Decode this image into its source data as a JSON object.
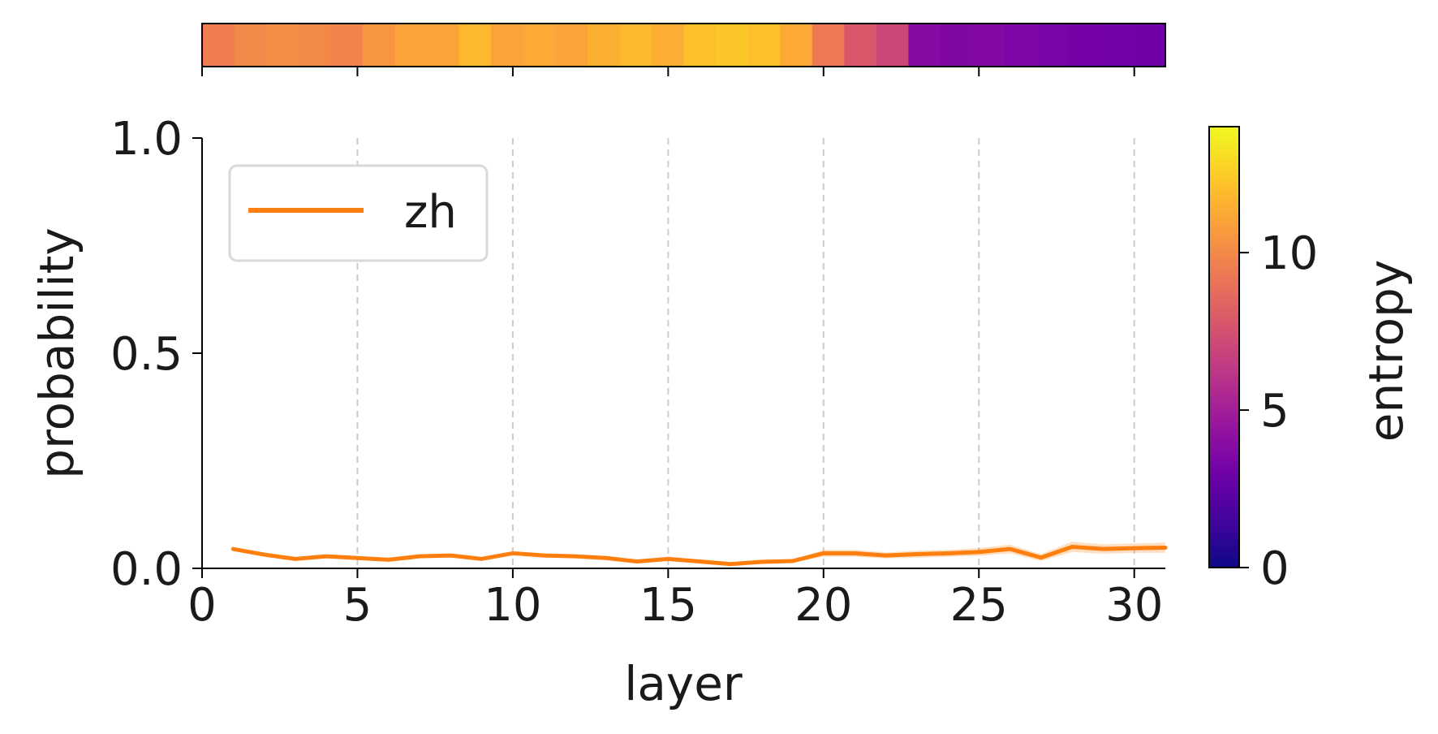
{
  "chart_data": {
    "type": "line",
    "xlabel": "layer",
    "ylabel": "probability",
    "xlim": [
      0,
      31
    ],
    "ylim": [
      0,
      1
    ],
    "x_ticks": [
      0,
      5,
      10,
      15,
      20,
      25,
      30
    ],
    "y_ticks": [
      0.0,
      0.5,
      1.0
    ],
    "x_tick_labels": [
      "0",
      "5",
      "10",
      "15",
      "20",
      "25",
      "30"
    ],
    "y_tick_labels": [
      "0.0",
      "0.5",
      "1.0"
    ],
    "grid": "vertical dashed at x ticks",
    "legend": {
      "location": "top-left",
      "entries": [
        "zh"
      ]
    },
    "series": [
      {
        "name": "zh",
        "color": "#ff7f0e",
        "x": [
          1,
          2,
          3,
          4,
          5,
          6,
          7,
          8,
          9,
          10,
          11,
          12,
          13,
          14,
          15,
          16,
          17,
          18,
          19,
          20,
          21,
          22,
          23,
          24,
          25,
          26,
          27,
          28,
          29,
          30,
          31
        ],
        "values": [
          0.045,
          0.032,
          0.022,
          0.028,
          0.024,
          0.02,
          0.028,
          0.03,
          0.022,
          0.035,
          0.03,
          0.028,
          0.024,
          0.016,
          0.022,
          0.016,
          0.01,
          0.015,
          0.017,
          0.035,
          0.035,
          0.03,
          0.033,
          0.035,
          0.038,
          0.045,
          0.025,
          0.05,
          0.045,
          0.047,
          0.048
        ],
        "band": [
          0.004,
          0.004,
          0.003,
          0.003,
          0.003,
          0.003,
          0.003,
          0.003,
          0.003,
          0.004,
          0.003,
          0.003,
          0.003,
          0.003,
          0.003,
          0.003,
          0.003,
          0.003,
          0.003,
          0.008,
          0.008,
          0.007,
          0.008,
          0.008,
          0.009,
          0.01,
          0.008,
          0.012,
          0.011,
          0.011,
          0.012
        ]
      }
    ],
    "entropy_strip": {
      "values": [
        9.5,
        10.0,
        10.2,
        10.0,
        9.8,
        10.5,
        11.0,
        11.0,
        11.8,
        11.0,
        11.3,
        11.0,
        11.5,
        11.8,
        11.4,
        12.1,
        12.3,
        12.1,
        11.3,
        9.3,
        7.8,
        7.0,
        3.8,
        3.6,
        3.7,
        3.5,
        3.4,
        3.2,
        3.1,
        3.0
      ],
      "color_map": [
        "#0d0887",
        "#46039f",
        "#7201a8",
        "#9c179e",
        "#bd3786",
        "#d8576b",
        "#ed7953",
        "#fb9f3a",
        "#fdca26",
        "#f0f921"
      ]
    },
    "colorbar": {
      "label": "entropy",
      "vmin": 0,
      "vmax": 14,
      "ticks": [
        0,
        5,
        10
      ],
      "tick_labels": [
        "0",
        "5",
        "10"
      ]
    }
  },
  "colors": {
    "axis": "#000000",
    "grid": "#cccccc",
    "legend_border": "#d9d9d9"
  }
}
